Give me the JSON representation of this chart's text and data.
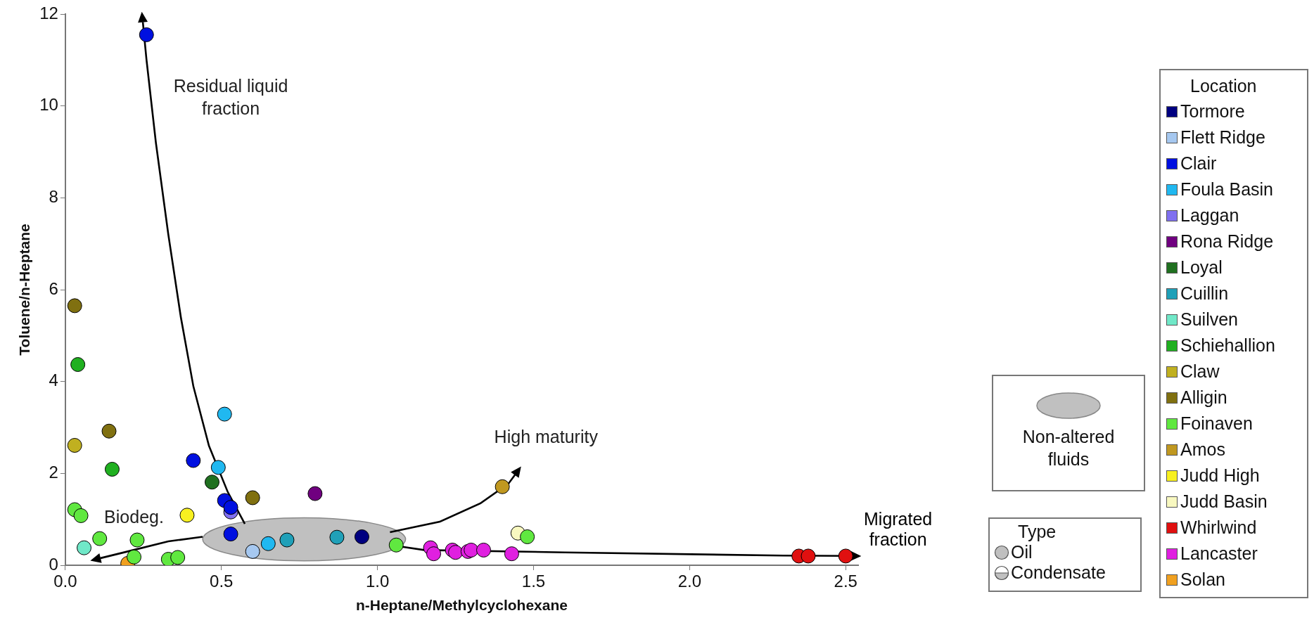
{
  "chart_data": {
    "type": "scatter",
    "xlabel": "n-Heptane/Methylcyclohexane",
    "ylabel": "Toluene/n-Heptane",
    "legend_title": "Location",
    "legend": "right",
    "marker": "circle",
    "grid": false,
    "xlim": [
      0,
      2.54
    ],
    "xticks": [
      {
        "value": 0,
        "label": "0.0"
      },
      {
        "value": 0.5,
        "label": "0.5"
      },
      {
        "value": 1,
        "label": "1.0"
      },
      {
        "value": 1.5,
        "label": "1.5"
      },
      {
        "value": 2,
        "label": "2.0"
      },
      {
        "value": 2.5,
        "label": "2.5"
      }
    ],
    "ylim": [
      0,
      12
    ],
    "yticks": [
      0,
      2,
      4,
      6,
      8,
      10,
      12
    ],
    "series": [
      {
        "name": "Tormore",
        "color": "#000080",
        "x": [
          0.95
        ],
        "values": [
          0.62
        ]
      },
      {
        "name": "Flett Ridge",
        "color": "#a6c8f0",
        "x": [
          0.6
        ],
        "values": [
          0.3
        ]
      },
      {
        "name": "Clair",
        "color": "#0010e0",
        "x": [
          0.26,
          0.41,
          0.51,
          0.53,
          0.53
        ],
        "values": [
          11.55,
          2.28,
          1.41,
          1.26,
          0.68
        ]
      },
      {
        "name": "Foula Basin",
        "color": "#20b8f0",
        "x": [
          0.51,
          0.49,
          0.65
        ],
        "values": [
          3.29,
          2.13,
          0.47
        ]
      },
      {
        "name": "Laggan",
        "color": "#8070f0",
        "x": [
          0.53
        ],
        "values": [
          1.16
        ]
      },
      {
        "name": "Rona Ridge",
        "color": "#700080",
        "x": [
          0.8
        ],
        "values": [
          1.56
        ]
      },
      {
        "name": "Loyal",
        "color": "#207020",
        "x": [
          0.47
        ],
        "values": [
          1.81
        ]
      },
      {
        "name": "Cuillin",
        "color": "#20a0b8",
        "x": [
          0.71,
          0.87
        ],
        "values": [
          0.55,
          0.61
        ]
      },
      {
        "name": "Suilven",
        "color": "#70e8c8",
        "x": [
          0.06
        ],
        "values": [
          0.38
        ]
      },
      {
        "name": "Schiehallion",
        "color": "#20b020",
        "x": [
          0.04,
          0.15
        ],
        "values": [
          4.37,
          2.09
        ]
      },
      {
        "name": "Claw",
        "color": "#c0b020",
        "x": [
          0.03
        ],
        "values": [
          2.61
        ]
      },
      {
        "name": "Alligin",
        "color": "#807010",
        "x": [
          0.03,
          0.14,
          0.6
        ],
        "values": [
          5.65,
          2.92,
          1.47
        ]
      },
      {
        "name": "Foinaven",
        "color": "#60e840",
        "x": [
          0.03,
          0.05,
          0.11,
          0.23,
          0.22,
          0.33,
          0.36,
          1.06,
          1.48
        ],
        "values": [
          1.21,
          1.08,
          0.58,
          0.55,
          0.18,
          0.13,
          0.17,
          0.44,
          0.62
        ]
      },
      {
        "name": "Amos",
        "color": "#c09820",
        "x": [
          1.4
        ],
        "values": [
          1.71
        ]
      },
      {
        "name": "Judd High",
        "color": "#f8f020",
        "x": [
          0.39
        ],
        "values": [
          1.09
        ]
      },
      {
        "name": "Judd Basin",
        "color": "#f8f8c0",
        "x": [
          1.45
        ],
        "values": [
          0.7
        ]
      },
      {
        "name": "Whirlwind",
        "color": "#e01010",
        "x": [
          2.35,
          2.38,
          2.5
        ],
        "values": [
          0.2,
          0.2,
          0.2
        ]
      },
      {
        "name": "Lancaster",
        "color": "#e020e0",
        "x": [
          1.17,
          1.18,
          1.24,
          1.25,
          1.29,
          1.3,
          1.34,
          1.43
        ],
        "values": [
          0.38,
          0.25,
          0.33,
          0.28,
          0.3,
          0.33,
          0.33,
          0.25
        ]
      },
      {
        "name": "Solan",
        "color": "#f0a020",
        "x": [
          0.2
        ],
        "values": [
          0.04
        ]
      }
    ],
    "annotations": [
      "Residual liquid\nfraction",
      "High maturity",
      "Biodeg.",
      "Migrated\nfraction",
      "Non-altered\nfluids",
      "Type",
      "Oil",
      "Condensate"
    ]
  }
}
